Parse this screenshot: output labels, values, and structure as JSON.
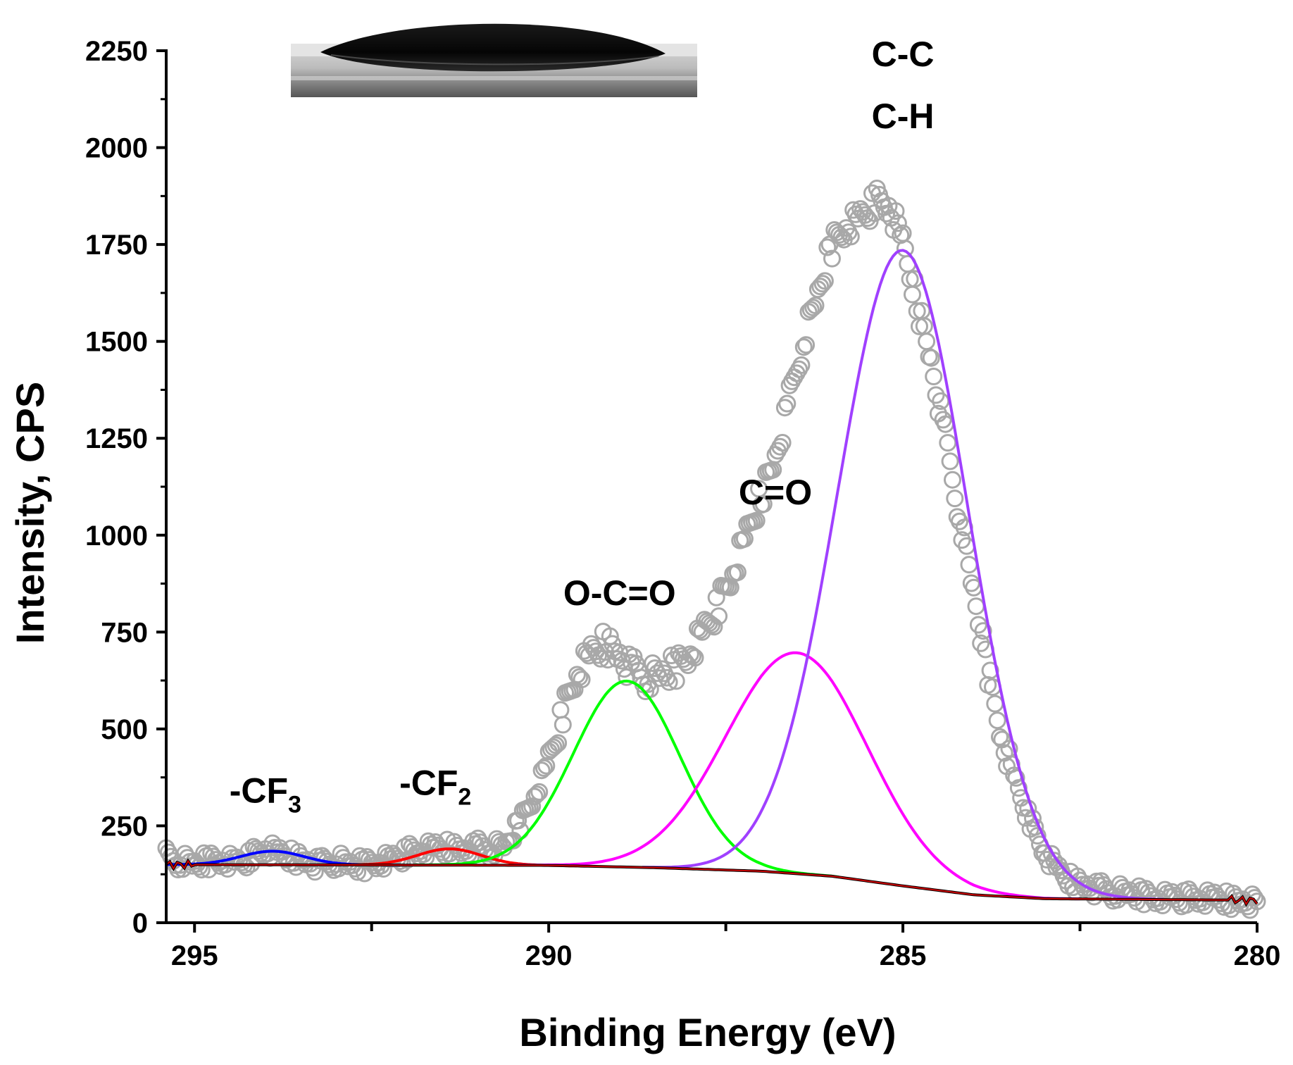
{
  "chart_data": {
    "type": "scatter",
    "title": "",
    "xlabel": "Binding Energy (eV)",
    "ylabel": "Intensity, CPS",
    "x_reversed": true,
    "xlim": [
      295.4,
      280
    ],
    "ylim": [
      0,
      2250
    ],
    "x_ticks": [
      "295",
      "290",
      "285",
      "280"
    ],
    "x_minor_ticks": [
      292.5,
      287.5,
      282.5
    ],
    "y_ticks": [
      "0",
      "250",
      "500",
      "750",
      "1000",
      "1250",
      "1500",
      "1750",
      "2000",
      "2250"
    ],
    "grid": false,
    "legend": "none",
    "inset": "water-droplet-photo",
    "colors": {
      "data_points": "#a8a8a8",
      "cf3": "#0000ff",
      "cf2": "#ff0000",
      "oco": "#00ff00",
      "co": "#ff00ff",
      "cc_ch": "#a040ff",
      "envelope": "#cc0000",
      "baseline": "#000000"
    },
    "baseline": {
      "x": [
        295.4,
        290,
        288.5,
        287,
        286,
        285,
        284,
        283,
        280
      ],
      "y": [
        150,
        148,
        142,
        133,
        120,
        95,
        72,
        62,
        58
      ]
    },
    "components": [
      {
        "label": "-CF3",
        "center": 293.9,
        "amplitude": 35,
        "sigma": 0.45,
        "color": "#0000ff"
      },
      {
        "label": "-CF2",
        "center": 291.4,
        "amplitude": 42,
        "sigma": 0.45,
        "color": "#ff0000"
      },
      {
        "label": "O-C=O",
        "center": 288.9,
        "amplitude": 480,
        "sigma": 0.75,
        "color": "#00ff00"
      },
      {
        "label": "C=O",
        "center": 286.5,
        "amplitude": 570,
        "sigma": 1.0,
        "color": "#ff00ff"
      },
      {
        "label": "C-C C-H",
        "center": 285.0,
        "amplitude": 1640,
        "sigma": 0.92,
        "color": "#a040ff"
      }
    ],
    "series": [
      {
        "type": "scatter",
        "x": [
          295.4,
          295.2,
          295.0,
          294.8,
          294.6,
          294.4,
          294.2,
          294.0,
          293.8,
          293.6,
          293.4,
          293.2,
          293.0,
          292.8,
          292.6,
          292.4,
          292.2,
          292.0,
          291.8,
          291.6,
          291.4,
          291.2,
          291.0,
          290.8,
          290.6,
          290.4,
          290.2,
          290.0,
          289.8,
          289.6,
          289.4,
          289.2,
          289.0,
          288.8,
          288.6,
          288.4,
          288.2,
          288.0,
          287.8,
          287.6,
          287.4,
          287.2,
          287.0,
          286.8,
          286.6,
          286.4,
          286.2,
          286.0,
          285.8,
          285.6,
          285.4,
          285.2,
          285.0,
          284.8,
          284.6,
          284.4,
          284.2,
          284.0,
          283.8,
          283.6,
          283.4,
          283.2,
          283.0,
          282.8,
          282.6,
          282.4,
          282.2,
          282.0,
          281.8,
          281.6,
          281.4,
          281.2,
          281.0,
          280.8,
          280.6,
          280.4,
          280.2,
          280.0
        ],
        "y": [
          170,
          158,
          150,
          160,
          165,
          155,
          170,
          190,
          175,
          168,
          158,
          150,
          160,
          148,
          150,
          160,
          165,
          180,
          185,
          190,
          192,
          188,
          195,
          190,
          200,
          260,
          330,
          420,
          540,
          640,
          690,
          720,
          690,
          650,
          630,
          640,
          660,
          700,
          760,
          820,
          900,
          1000,
          1100,
          1200,
          1350,
          1500,
          1620,
          1750,
          1800,
          1820,
          1860,
          1850,
          1750,
          1600,
          1450,
          1250,
          1050,
          850,
          650,
          480,
          360,
          260,
          180,
          130,
          105,
          95,
          85,
          78,
          75,
          70,
          68,
          66,
          64,
          62,
          60,
          58,
          56,
          55
        ]
      }
    ],
    "annotations": [
      {
        "text": "-CF",
        "sub": "3",
        "x": 294.0,
        "y": 310
      },
      {
        "text": "-CF",
        "sub": "2",
        "x": 291.6,
        "y": 330
      },
      {
        "text": "O-C=O",
        "x": 289.0,
        "y": 820
      },
      {
        "text": "C=O",
        "x": 286.8,
        "y": 1080
      },
      {
        "text": "C-C",
        "x": 285.0,
        "y": 2210
      },
      {
        "text": "C-H",
        "x": 285.0,
        "y": 2050
      }
    ]
  }
}
